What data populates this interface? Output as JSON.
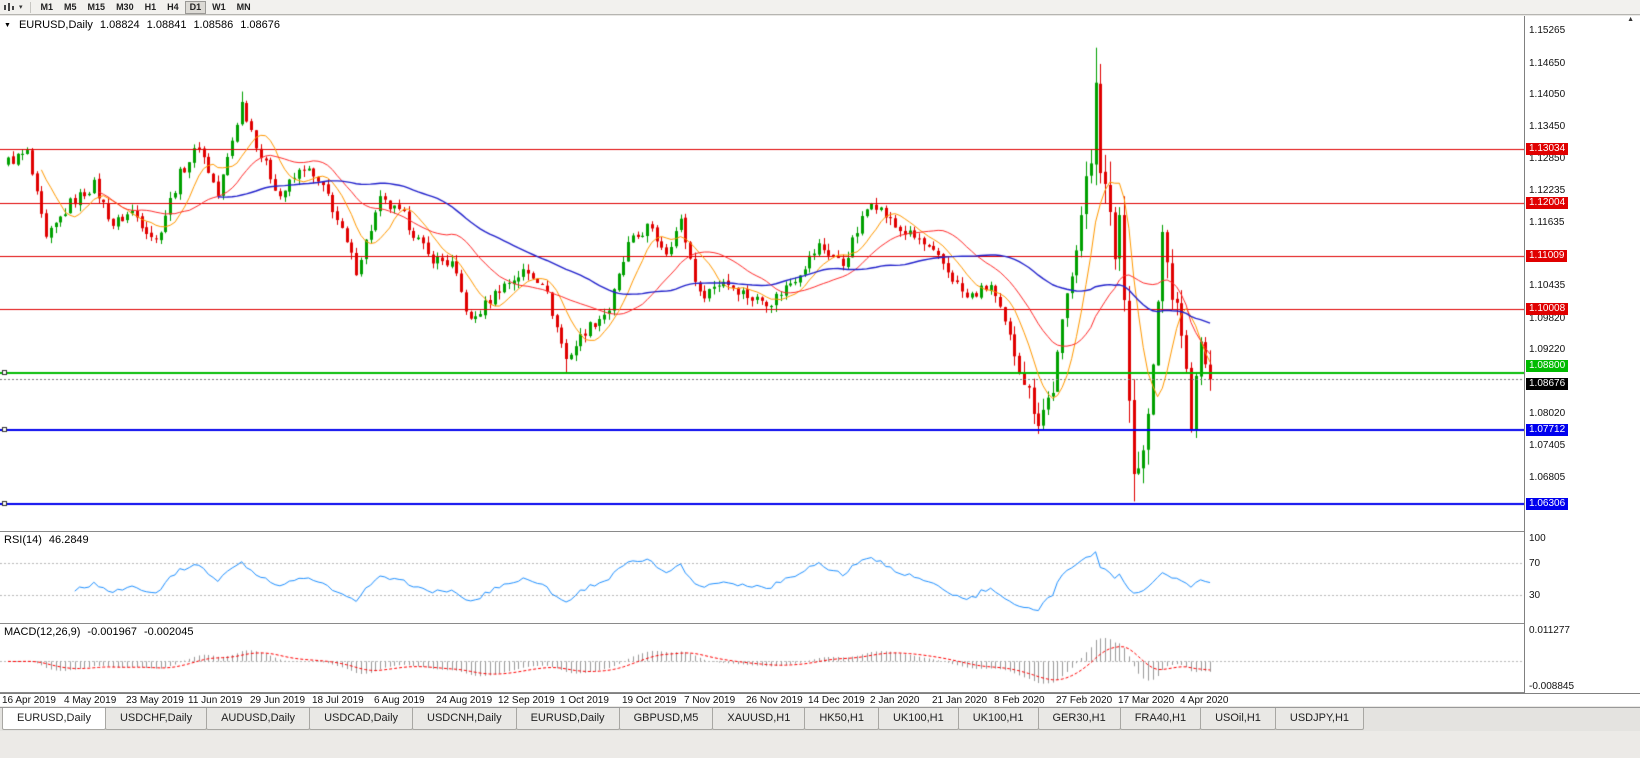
{
  "toolbar": {
    "timeframes": [
      "M1",
      "M5",
      "M15",
      "M30",
      "H1",
      "H4",
      "D1",
      "W1",
      "MN"
    ],
    "active_timeframe": "D1"
  },
  "icons": {
    "chart_dropdown": "▼",
    "toolbar_caret": "▾",
    "scale_top_marker": "▲",
    "chart_type_icon": "bar-chart"
  },
  "chart_header": {
    "symbol": "EURUSD,Daily",
    "open": "1.08824",
    "high": "1.08841",
    "low": "1.08586",
    "close": "1.08676"
  },
  "rsi_panel": {
    "label": "RSI(14)",
    "value": "46.2849",
    "scale_labels": [
      "100",
      "70",
      "30"
    ]
  },
  "macd_panel": {
    "label": "MACD(12,26,9)",
    "value_main": "-0.001967",
    "value_signal": "-0.002045",
    "scale_labels": [
      "0.011277",
      "-0.008845"
    ]
  },
  "price_scale": {
    "ticks": [
      "1.15265",
      "1.14650",
      "1.14050",
      "1.13450",
      "1.12850",
      "1.12235",
      "1.11635",
      "1.10435",
      "1.09820",
      "1.09220",
      "1.08020",
      "1.07405",
      "1.06805"
    ],
    "current_price_label": "1.08676"
  },
  "date_axis": [
    "16 Apr 2019",
    "4 May 2019",
    "23 May 2019",
    "11 Jun 2019",
    "29 Jun 2019",
    "18 Jul 2019",
    "6 Aug 2019",
    "24 Aug 2019",
    "12 Sep 2019",
    "1 Oct 2019",
    "19 Oct 2019",
    "7 Nov 2019",
    "26 Nov 2019",
    "14 Dec 2019",
    "2 Jan 2020",
    "21 Jan 2020",
    "8 Feb 2020",
    "27 Feb 2020",
    "17 Mar 2020",
    "4 Apr 2020"
  ],
  "tabs": [
    "EURUSD,Daily",
    "USDCHF,Daily",
    "AUDUSD,Daily",
    "USDCAD,Daily",
    "USDCNH,Daily",
    "EURUSD,Daily",
    "GBPUSD,M5",
    "XAUUSD,H1",
    "HK50,H1",
    "UK100,H1",
    "UK100,H1",
    "GER30,H1",
    "FRA40,H1",
    "USOil,H1",
    "USDJPY,H1"
  ],
  "active_tab_index": 0,
  "colors": {
    "bull": "#00a000",
    "bear": "#e00000",
    "rsi_line": "#1e90ff",
    "macd_hist": "#9a9a9a",
    "macd_signal": "#ff0000",
    "grid_dotted": "#b8b8b8",
    "current_price_line": "#777777"
  },
  "chart_data": {
    "type": "candlestick",
    "symbol": "EURUSD",
    "timeframe": "Daily",
    "ohlc_current": {
      "open": 1.08824,
      "high": 1.08841,
      "low": 1.08586,
      "close": 1.08676
    },
    "candle_count": 253,
    "y_range": [
      1.058,
      1.1555
    ],
    "date_label_step": 13,
    "close_keypoints": [
      [
        0,
        1.128
      ],
      [
        4,
        1.1295
      ],
      [
        8,
        1.113
      ],
      [
        13,
        1.12
      ],
      [
        18,
        1.1235
      ],
      [
        22,
        1.116
      ],
      [
        26,
        1.1185
      ],
      [
        31,
        1.113
      ],
      [
        36,
        1.1255
      ],
      [
        40,
        1.131
      ],
      [
        44,
        1.1215
      ],
      [
        49,
        1.139
      ],
      [
        53,
        1.129
      ],
      [
        57,
        1.1215
      ],
      [
        62,
        1.127
      ],
      [
        67,
        1.1215
      ],
      [
        73,
        1.1075
      ],
      [
        78,
        1.1205
      ],
      [
        83,
        1.1175
      ],
      [
        88,
        1.11
      ],
      [
        93,
        1.1085
      ],
      [
        97,
        1.0975
      ],
      [
        103,
        1.104
      ],
      [
        108,
        1.107
      ],
      [
        112,
        1.1055
      ],
      [
        117,
        1.0905
      ],
      [
        121,
        1.096
      ],
      [
        126,
        1.1
      ],
      [
        130,
        1.112
      ],
      [
        134,
        1.1155
      ],
      [
        138,
        1.111
      ],
      [
        141,
        1.1165
      ],
      [
        145,
        1.1025
      ],
      [
        150,
        1.1055
      ],
      [
        156,
        1.102
      ],
      [
        160,
        1.1015
      ],
      [
        165,
        1.106
      ],
      [
        170,
        1.112
      ],
      [
        175,
        1.1085
      ],
      [
        181,
        1.121
      ],
      [
        186,
        1.1155
      ],
      [
        191,
        1.113
      ],
      [
        196,
        1.1085
      ],
      [
        201,
        1.102
      ],
      [
        206,
        1.1045
      ],
      [
        211,
        1.092
      ],
      [
        216,
        1.079
      ],
      [
        219,
        1.085
      ],
      [
        222,
        1.1025
      ],
      [
        227,
        1.128
      ],
      [
        228,
        1.145
      ],
      [
        229,
        1.128
      ],
      [
        232,
        1.1105
      ],
      [
        233,
        1.118
      ],
      [
        236,
        1.0692
      ],
      [
        238,
        1.0725
      ],
      [
        240,
        1.088
      ],
      [
        242,
        1.114
      ],
      [
        244,
        1.103
      ],
      [
        246,
        1.096
      ],
      [
        248,
        1.079
      ],
      [
        250,
        1.093
      ],
      [
        252,
        1.08676
      ]
    ],
    "wick_extremes": {
      "49": {
        "high": 1.1412
      },
      "117": {
        "low": 1.0879
      },
      "216": {
        "low": 1.0778
      },
      "228": {
        "high": 1.1495
      },
      "236": {
        "low": 1.0636
      }
    },
    "volatility_zones": [
      {
        "from": 0,
        "to": 210,
        "body": 0.0011,
        "wick": 0.0013
      },
      {
        "from": 211,
        "to": 225,
        "body": 0.0018,
        "wick": 0.0022
      },
      {
        "from": 226,
        "to": 243,
        "body": 0.003,
        "wick": 0.0045
      },
      {
        "from": 244,
        "to": 252,
        "body": 0.002,
        "wick": 0.0028
      }
    ],
    "horizontal_lines": [
      {
        "value": 1.13034,
        "label": "1.13034",
        "color": "#e00000",
        "width": 1
      },
      {
        "value": 1.12004,
        "label": "1.12004",
        "color": "#e00000",
        "width": 1
      },
      {
        "value": 1.11009,
        "label": "1.11009",
        "color": "#e00000",
        "width": 1
      },
      {
        "value": 1.10008,
        "label": "1.10008",
        "color": "#e00000",
        "width": 1
      },
      {
        "value": 1.088,
        "label": "1.08800",
        "color": "#00bb00",
        "width": 2
      },
      {
        "value": 1.07712,
        "label": "1.07712",
        "color": "#0000ee",
        "width": 2
      },
      {
        "value": 1.06306,
        "label": "1.06306",
        "color": "#0000ee",
        "width": 2
      }
    ],
    "current_price": 1.08676,
    "moving_averages": [
      {
        "period": 8,
        "color": "#ff9900",
        "width": 1
      },
      {
        "period": 20,
        "color": "#ff2a2a",
        "width": 1
      },
      {
        "period": 45,
        "color": "#2222cc",
        "width": 1.4
      }
    ],
    "indicators": {
      "rsi": {
        "period": 14,
        "current": 46.2849,
        "levels": [
          70,
          30
        ],
        "range_top": 108,
        "range_bottom": -5
      },
      "macd": {
        "fast": 12,
        "slow": 26,
        "signal": 9,
        "current_main": -0.001967,
        "current_signal": -0.002045,
        "range": [
          -0.0103,
          0.0126
        ]
      }
    }
  }
}
